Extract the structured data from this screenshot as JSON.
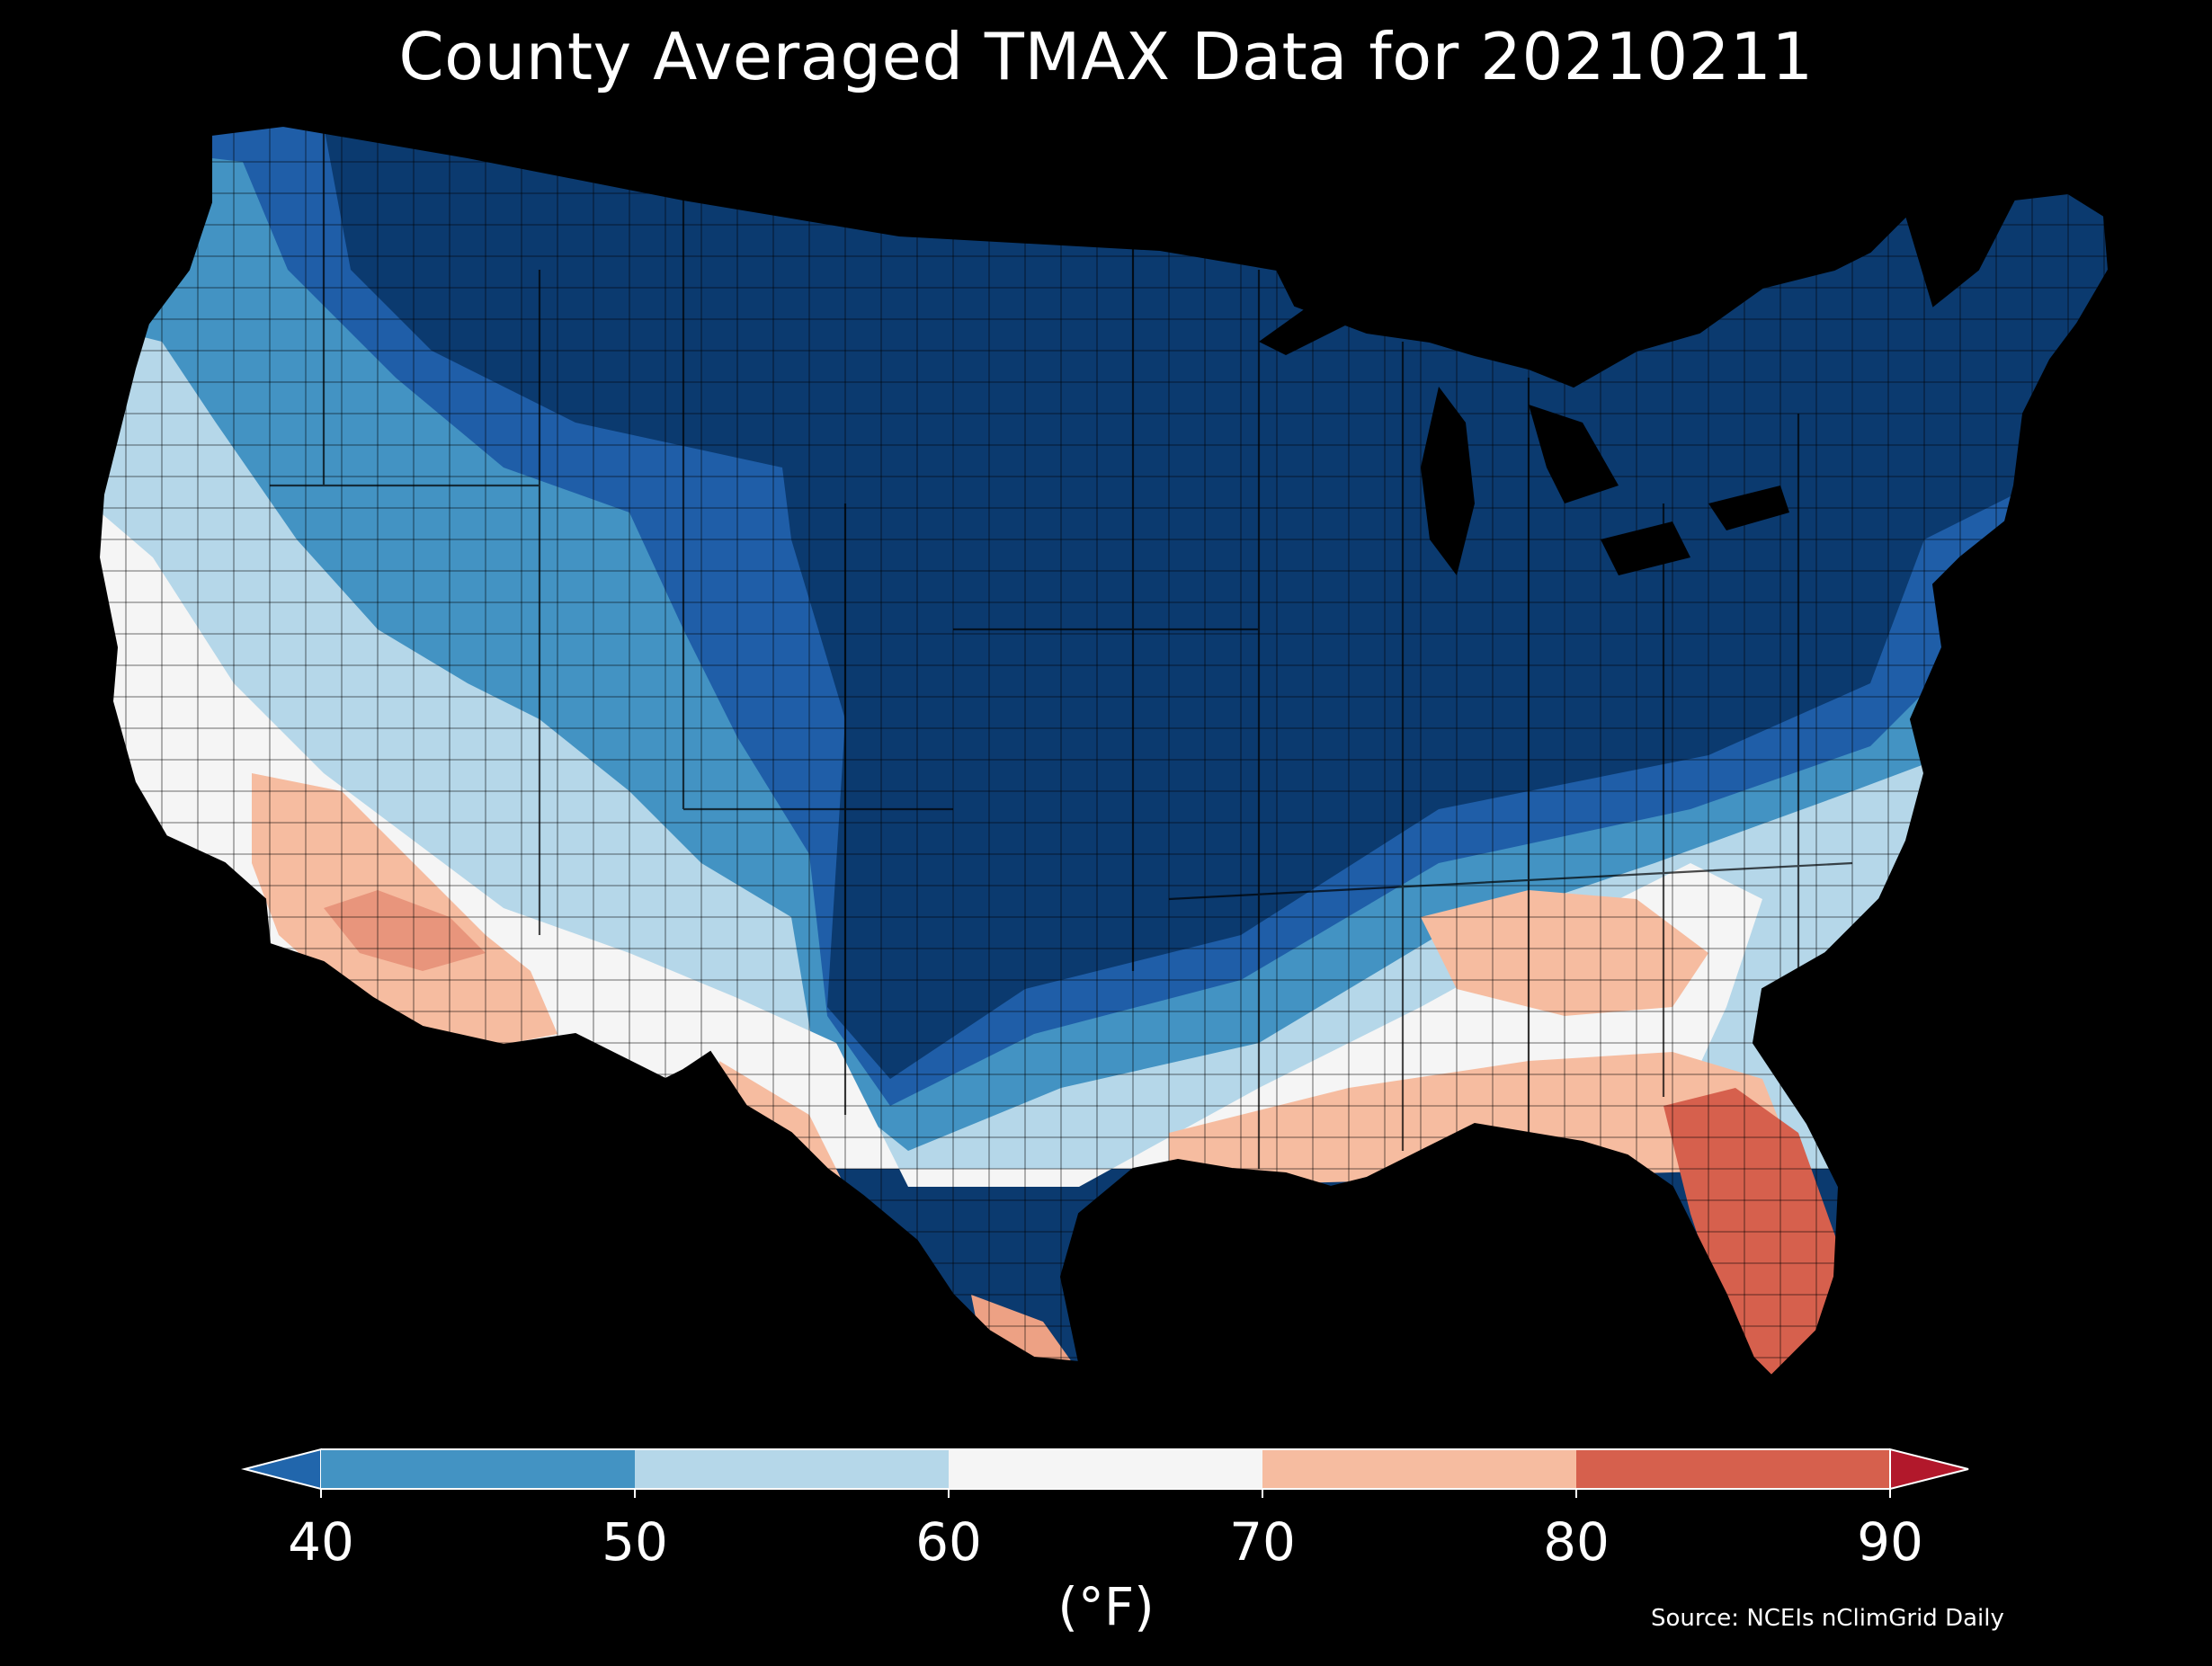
{
  "title": "County Averaged TMAX Data for 20210211",
  "colorbar": {
    "ticks": [
      "40",
      "50",
      "60",
      "70",
      "80",
      "90"
    ],
    "label": "(°F)",
    "bins": [
      {
        "from": 40,
        "to": 50,
        "color": "#4393c3"
      },
      {
        "from": 50,
        "to": 60,
        "color": "#b5d7e9"
      },
      {
        "from": 60,
        "to": 70,
        "color": "#f5f5f5"
      },
      {
        "from": 70,
        "to": 80,
        "color": "#f6bca0"
      },
      {
        "from": 80,
        "to": 90,
        "color": "#d6604d"
      }
    ],
    "under_color": "#2166ac",
    "over_color": "#b2182b"
  },
  "source": "Source: NCEIs nClimGrid Daily",
  "map": {
    "region": "Contiguous United States",
    "variable": "TMAX",
    "units": "°F",
    "background_color": "#000000",
    "county_border_color": "#000000",
    "lake_color": "#000000",
    "colors": {
      "below_40": "#0b3a6f",
      "deep_blue": "#1f5ea8",
      "bin_40_50": "#4393c3",
      "bin_50_60": "#b5d7e9",
      "bin_60_70": "#f5f5f5",
      "bin_70_80": "#f6bca0",
      "bin_80_90": "#d6604d"
    }
  }
}
